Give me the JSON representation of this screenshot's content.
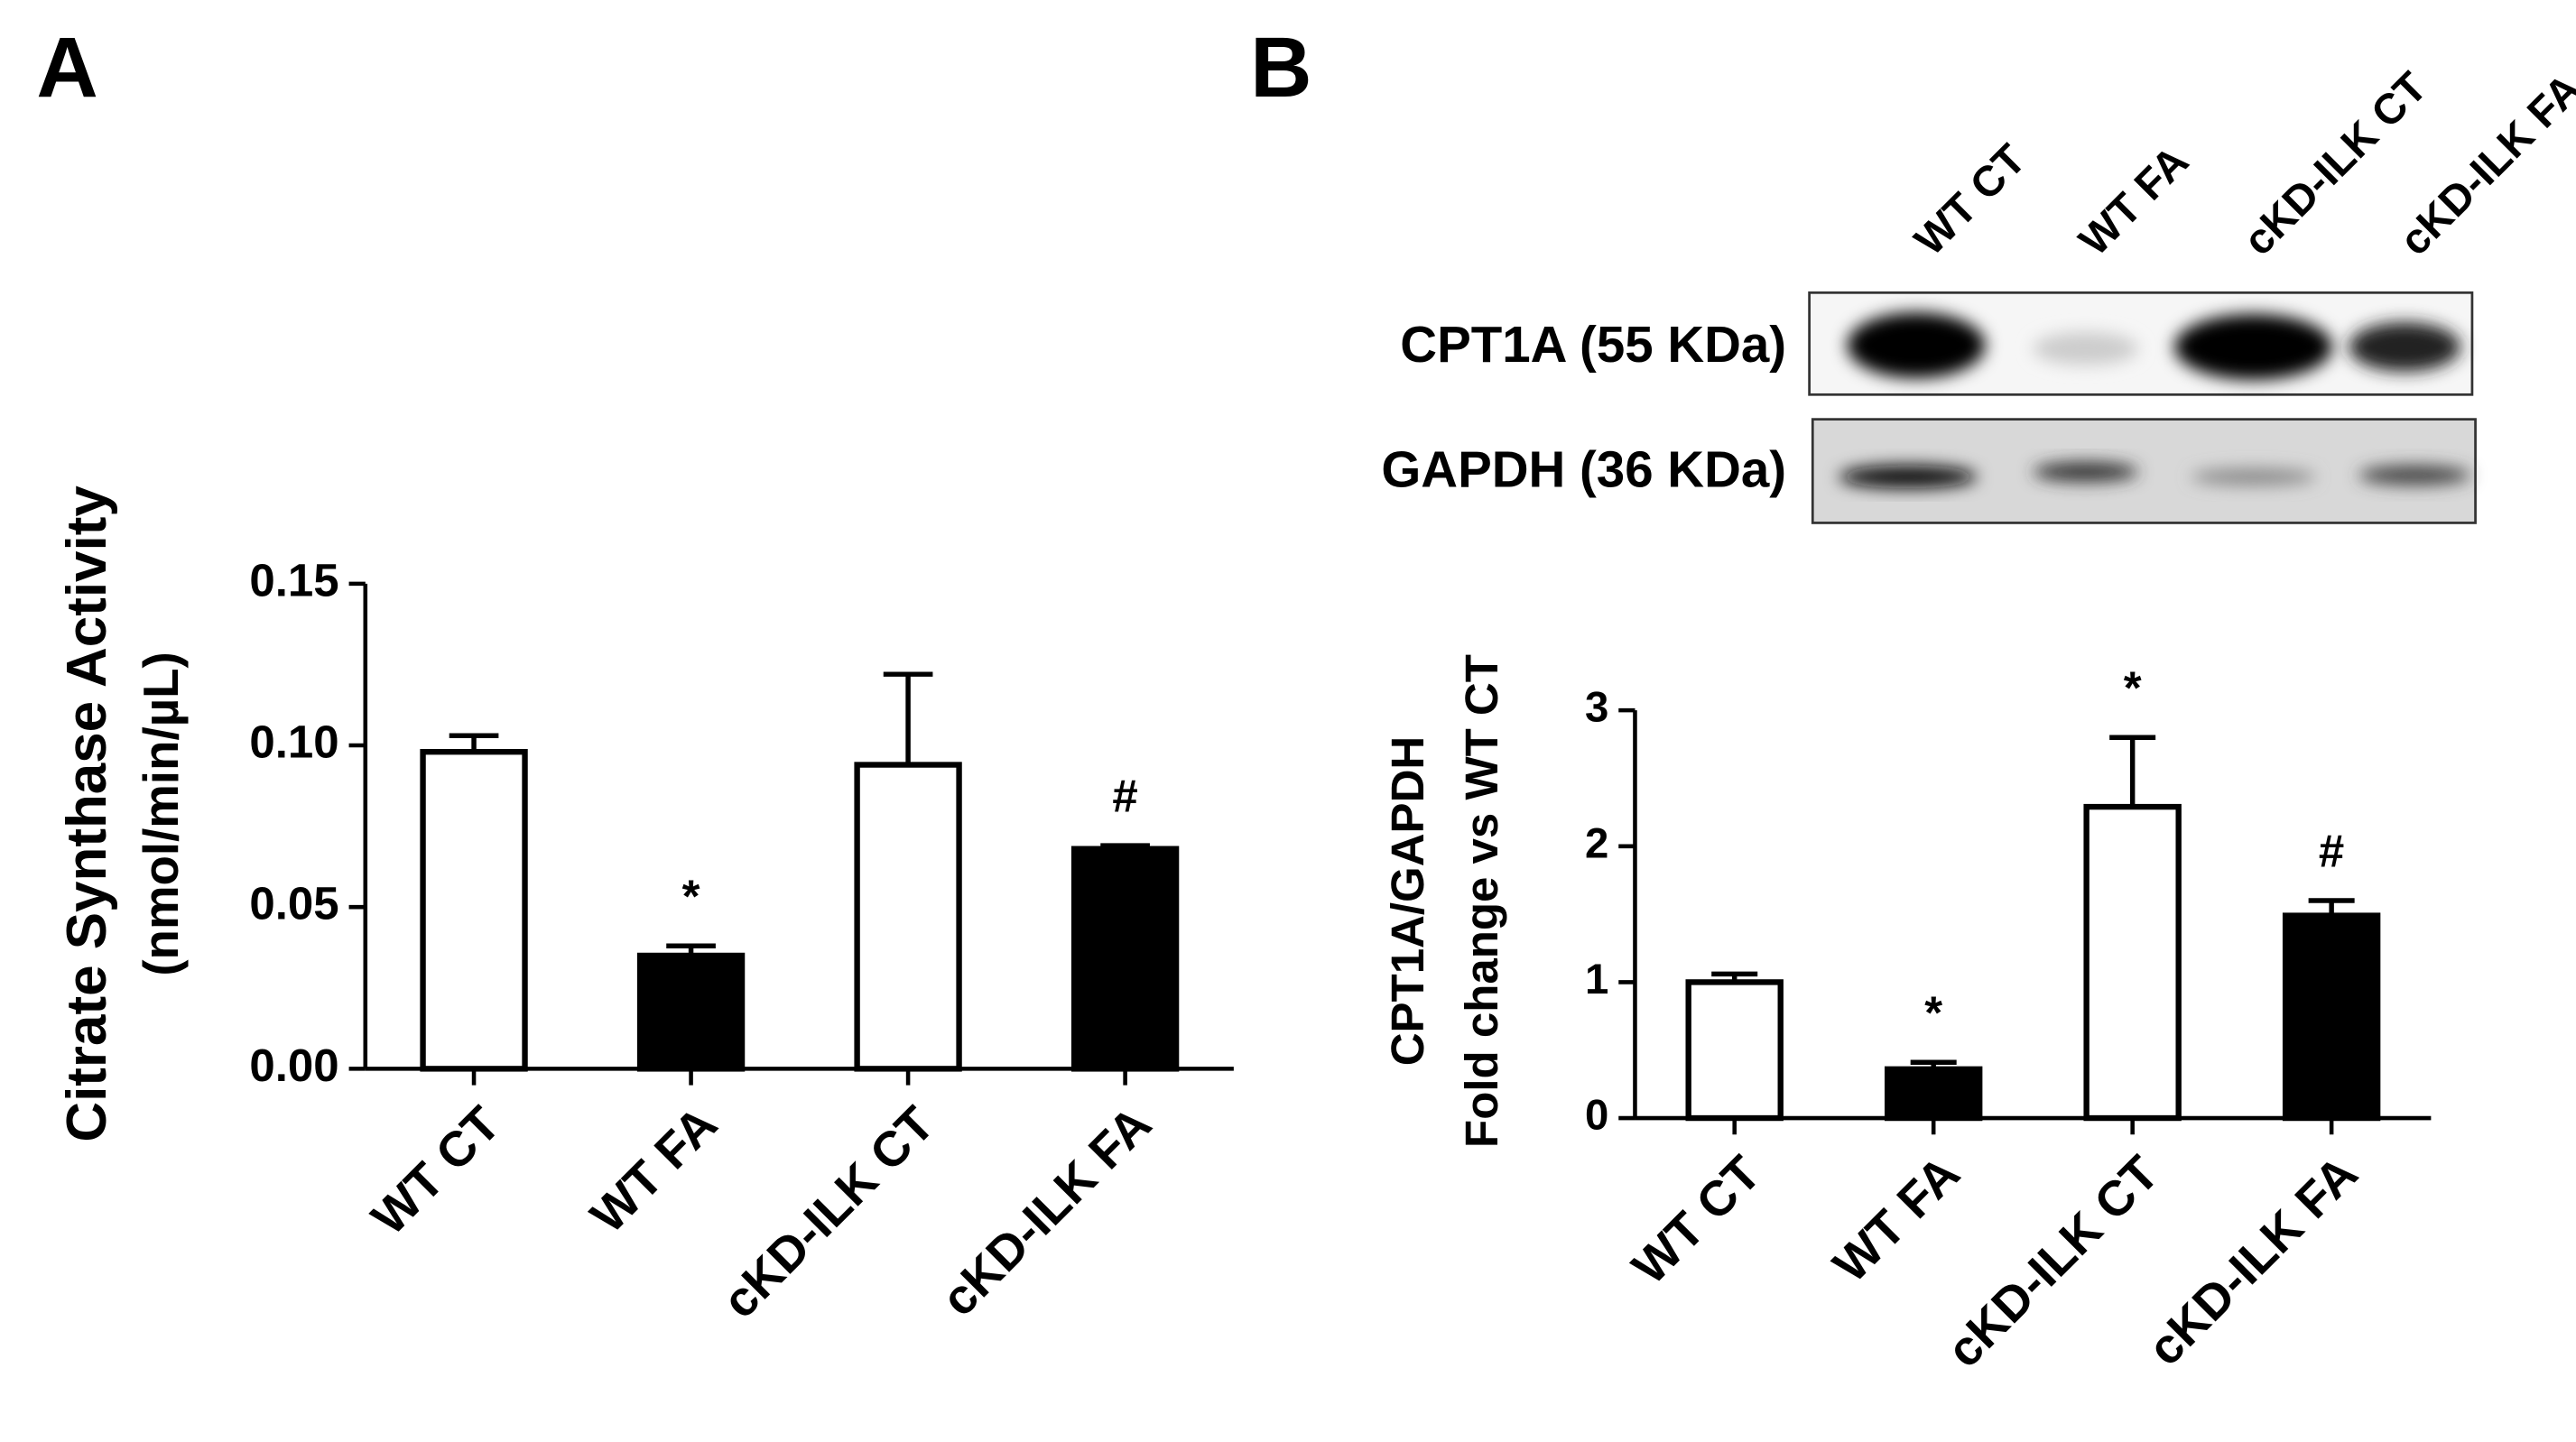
{
  "chart_data": [
    {
      "type": "bar",
      "panel": "A",
      "ylabel": [
        "Citrate Synthase Activity",
        "(nmol/min/µL)"
      ],
      "categories": [
        "WT CT",
        "WT FA",
        "cKD-ILK CT",
        "cKD-ILK FA"
      ],
      "series": [
        {
          "values": [
            0.098,
            0.035,
            0.094,
            0.068
          ],
          "errors": [
            0.005,
            0.003,
            0.028,
            0.001
          ],
          "colors": [
            "#ffffff",
            "#000000",
            "#ffffff",
            "#000000"
          ]
        }
      ],
      "annotations": [
        null,
        "*",
        null,
        "#"
      ],
      "ylim": [
        0,
        0.15
      ],
      "yticks": [
        {
          "value": 0,
          "label": "0.00"
        },
        {
          "value": 0.05,
          "label": "0.05"
        },
        {
          "value": 0.1,
          "label": "0.10"
        },
        {
          "value": 0.15,
          "label": "0.15"
        }
      ]
    },
    {
      "type": "bar",
      "panel": "B",
      "ylabel": [
        "CPT1A/GAPDH",
        "Fold change vs WT CT"
      ],
      "blot": {
        "lanes": [
          "WT CT",
          "WT FA",
          "cKD-ILK CT",
          "cKD-ILK FA"
        ],
        "rows": [
          "CPT1A (55 KDa)",
          "GAPDH (36 KDa)"
        ]
      },
      "categories": [
        "WT CT",
        "WT FA",
        "cKD-ILK CT",
        "cKD-ILK FA"
      ],
      "series": [
        {
          "values": [
            1.0,
            0.36,
            2.29,
            1.49
          ],
          "errors": [
            0.06,
            0.05,
            0.51,
            0.11
          ],
          "colors": [
            "#ffffff",
            "#000000",
            "#ffffff",
            "#000000"
          ]
        }
      ],
      "annotations": [
        null,
        "*",
        "*",
        "#"
      ],
      "ylim": [
        0,
        3
      ],
      "yticks": [
        0,
        1,
        2,
        3
      ]
    }
  ]
}
